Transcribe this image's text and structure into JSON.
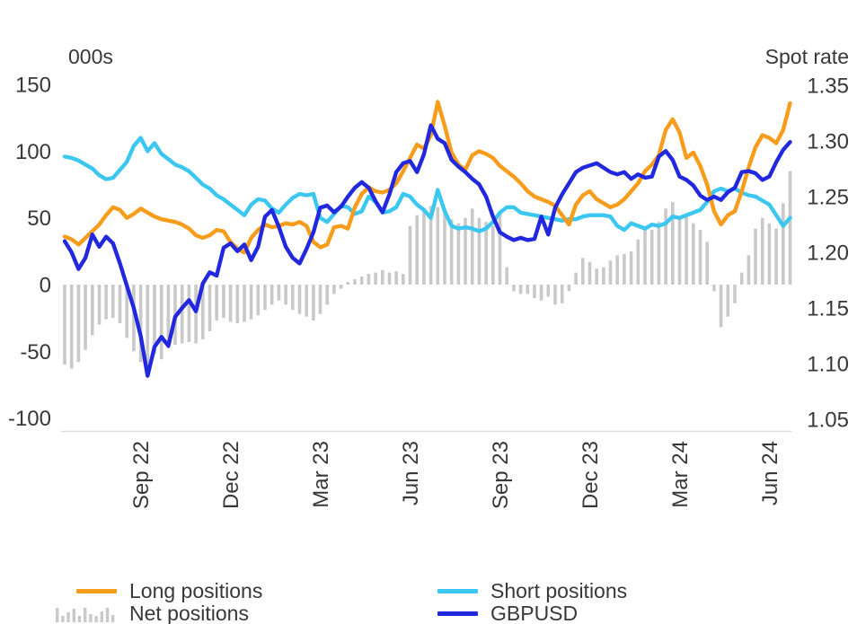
{
  "panel": {
    "left_axis_title": "000s",
    "right_axis_title": "Spot rate"
  },
  "legend": {
    "long": "Long positions",
    "net": "Net positions",
    "short": "Short positions",
    "gbpusd": "GBPUSD"
  },
  "colors": {
    "long": "#F89C1C",
    "short": "#3BC7F0",
    "gbpusd": "#2228DD",
    "net": "#C9C9C9",
    "text": "#383838",
    "axis_rule": "#DBDBDB",
    "background": "#FFFFFF"
  },
  "chart_data": {
    "type": "mixed",
    "title": "",
    "x": {
      "unit": "weekly",
      "n_points": 106,
      "tick_labels": [
        "Sep 22",
        "Dec 22",
        "Mar 23",
        "Jun 23",
        "Sep 23",
        "Dec 23",
        "Mar 24",
        "Jun 24"
      ],
      "tick_indices": [
        11,
        24,
        37,
        50,
        63,
        76,
        89,
        102
      ]
    },
    "left_axis": {
      "title": "000s",
      "ticks": [
        150,
        100,
        50,
        0,
        -50,
        -100
      ],
      "min": -100,
      "max": 150
    },
    "right_axis": {
      "title": "Spot rate",
      "ticks": [
        "1.35",
        "1.30",
        "1.25",
        "1.20",
        "1.15",
        "1.10",
        "1.05"
      ],
      "min": 1.05,
      "max": 1.35
    },
    "series": [
      {
        "name": "Net positions",
        "type": "bar",
        "axis": "left",
        "color": "#C9C9C9",
        "values": [
          -60,
          -63,
          -58,
          -49,
          -38,
          -30,
          -26,
          -25,
          -29,
          -40,
          -50,
          -58,
          -66,
          -52,
          -56,
          -48,
          -45,
          -44,
          -43,
          -44,
          -41,
          -35,
          -27,
          -25,
          -28,
          -29,
          -28,
          -26,
          -23,
          -19,
          -15,
          -12,
          -15,
          -19,
          -22,
          -24,
          -27,
          -22,
          -15,
          -7,
          -3,
          2,
          4,
          6,
          8,
          9,
          11,
          9,
          10,
          8,
          44,
          52,
          57,
          59,
          58,
          53,
          49,
          46,
          50,
          57,
          50,
          47,
          44,
          53,
          13,
          -5,
          -7,
          -7,
          -10,
          -12,
          -9,
          -15,
          -14,
          -5,
          9,
          20,
          17,
          12,
          13,
          18,
          22,
          23,
          25,
          34,
          44,
          41,
          47,
          57,
          62,
          50,
          53,
          46,
          41,
          32,
          -5,
          -32,
          -24,
          -14,
          9,
          22,
          42,
          50,
          46,
          42,
          61,
          85
        ]
      },
      {
        "name": "Short positions",
        "type": "line",
        "axis": "left",
        "color": "#3BC7F0",
        "values": [
          96,
          95,
          93,
          90,
          87,
          82,
          79,
          80,
          86,
          92,
          104,
          110,
          100,
          106,
          98,
          94,
          90,
          88,
          85,
          80,
          75,
          72,
          67,
          64,
          60,
          56,
          52,
          60,
          64,
          63,
          57,
          54,
          60,
          65,
          68,
          67,
          68,
          50,
          47,
          53,
          59,
          58,
          53,
          55,
          66,
          62,
          54,
          55,
          58,
          68,
          66,
          60,
          56,
          50,
          71,
          55,
          44,
          42,
          43,
          42,
          40,
          42,
          47,
          54,
          58,
          58,
          54,
          53,
          52,
          51,
          50,
          49,
          48,
          49,
          49,
          51,
          52,
          52,
          52,
          51,
          44,
          41,
          46,
          44,
          42,
          45,
          44,
          46,
          51,
          50,
          52,
          54,
          56,
          62,
          70,
          72,
          70,
          72,
          69,
          67,
          66,
          63,
          60,
          52,
          44,
          50
        ]
      },
      {
        "name": "Long positions",
        "type": "line",
        "axis": "left",
        "color": "#F89C1C",
        "values": [
          36,
          34,
          30,
          35,
          40,
          45,
          52,
          58,
          56,
          50,
          53,
          57,
          54,
          51,
          49,
          48,
          47,
          45,
          42,
          37,
          35,
          37,
          41,
          40,
          32,
          27,
          24,
          35,
          41,
          45,
          43,
          44,
          46,
          45,
          47,
          44,
          32,
          28,
          30,
          43,
          44,
          42,
          58,
          68,
          73,
          70,
          69,
          71,
          76,
          85,
          95,
          105,
          102,
          112,
          137,
          119,
          99,
          90,
          86,
          97,
          100,
          98,
          95,
          89,
          85,
          81,
          76,
          70,
          66,
          64,
          62,
          59,
          52,
          45,
          60,
          67,
          70,
          64,
          61,
          58,
          60,
          64,
          70,
          76,
          85,
          90,
          97,
          116,
          124,
          114,
          95,
          99,
          89,
          75,
          55,
          45,
          52,
          55,
          70,
          88,
          103,
          112,
          110,
          106,
          116,
          136
        ]
      },
      {
        "name": "GBPUSD",
        "type": "line",
        "axis": "right",
        "color": "#2228DD",
        "values": [
          1.21,
          1.2,
          1.185,
          1.195,
          1.216,
          1.205,
          1.214,
          1.208,
          1.19,
          1.17,
          1.15,
          1.125,
          1.089,
          1.115,
          1.124,
          1.116,
          1.142,
          1.15,
          1.157,
          1.147,
          1.172,
          1.182,
          1.179,
          1.204,
          1.208,
          1.201,
          1.207,
          1.193,
          1.205,
          1.232,
          1.238,
          1.223,
          1.205,
          1.195,
          1.19,
          1.203,
          1.218,
          1.24,
          1.242,
          1.236,
          1.241,
          1.25,
          1.258,
          1.263,
          1.258,
          1.246,
          1.236,
          1.252,
          1.272,
          1.28,
          1.282,
          1.272,
          1.288,
          1.314,
          1.302,
          1.298,
          1.283,
          1.277,
          1.272,
          1.266,
          1.261,
          1.25,
          1.232,
          1.218,
          1.214,
          1.211,
          1.213,
          1.211,
          1.212,
          1.232,
          1.216,
          1.24,
          1.252,
          1.262,
          1.272,
          1.276,
          1.278,
          1.28,
          1.276,
          1.272,
          1.27,
          1.272,
          1.266,
          1.27,
          1.267,
          1.268,
          1.286,
          1.291,
          1.283,
          1.268,
          1.265,
          1.26,
          1.251,
          1.247,
          1.25,
          1.247,
          1.254,
          1.258,
          1.272,
          1.273,
          1.271,
          1.265,
          1.268,
          1.281,
          1.292,
          1.299
        ]
      }
    ]
  }
}
